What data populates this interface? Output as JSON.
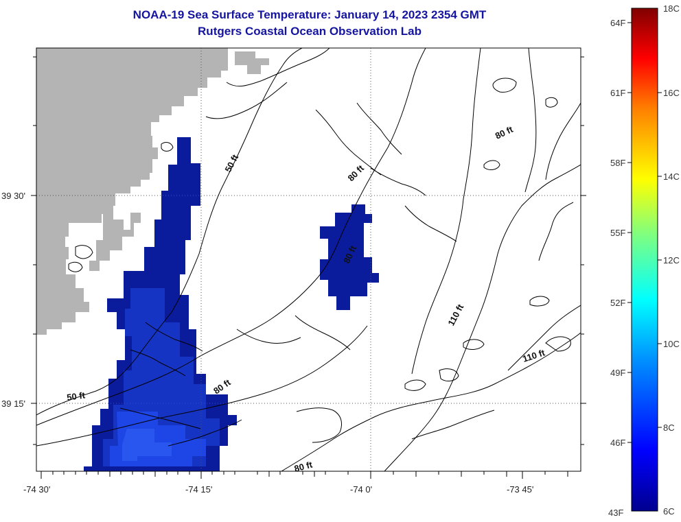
{
  "header": {
    "title": "NOAA-19 Sea Surface Temperature:  January 14, 2023 2354 GMT",
    "subtitle": "Rutgers Coastal Ocean Observation Lab"
  },
  "map": {
    "longitude_labels": [
      "-74 30'",
      "-74 15'",
      "-74 0'",
      "-73 45'"
    ],
    "latitude_labels": [
      "39 30'",
      "39 15'"
    ],
    "contour_labels": [
      "50 ft",
      "80 ft",
      "80 ft",
      "80 ft",
      "50 ft",
      "80 ft",
      "110 ft",
      "110 ft",
      "80 ft"
    ],
    "colors": {
      "land": "#b4b4b4",
      "sst_cold": "#0a1c9c",
      "sst_mid": "#1e46e6"
    }
  },
  "colorbar": {
    "fahrenheit_labels": [
      "64F",
      "61F",
      "58F",
      "55F",
      "52F",
      "49F",
      "46F",
      "43F"
    ],
    "celsius_labels": [
      "18C",
      "16C",
      "14C",
      "12C",
      "10C",
      "8C",
      "6C"
    ]
  }
}
